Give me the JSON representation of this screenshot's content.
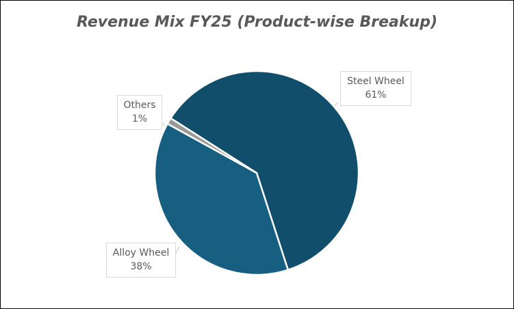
{
  "chart_data": {
    "type": "pie",
    "title": "Revenue Mix FY25 (Product-wise Breakup)",
    "slices": [
      {
        "label": "Steel Wheel",
        "value": 61,
        "value_label": "61%",
        "color": "#104e6b"
      },
      {
        "label": "Alloy Wheel",
        "value": 38,
        "value_label": "38%",
        "color": "#175f80"
      },
      {
        "label": "Others",
        "value": 1,
        "value_label": "1%",
        "color": "#999999"
      }
    ],
    "legend": "none",
    "data_labels": "category and percentage, outside with leader lines"
  }
}
